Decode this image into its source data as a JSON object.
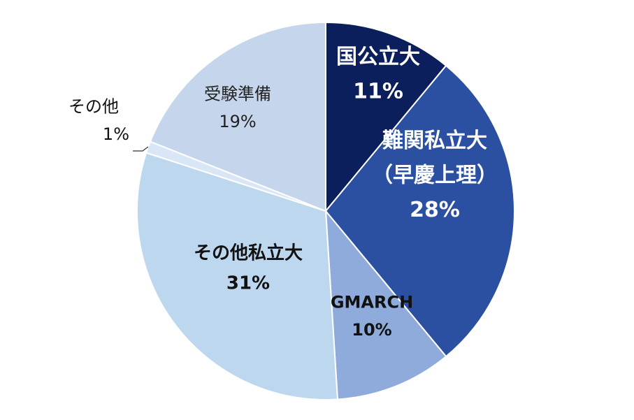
{
  "chart_data": {
    "type": "pie",
    "title": "",
    "start_angle_deg": 0,
    "direction": "clockwise",
    "slices": [
      {
        "label_lines": [
          "国公立大"
        ],
        "value": 11,
        "value_label": "11%",
        "color": "#0b1f5c",
        "text_color": "#ffffff",
        "bold": true
      },
      {
        "label_lines": [
          "難関私立大",
          "（早慶上理）"
        ],
        "value": 28,
        "value_label": "28%",
        "color": "#2b50a2",
        "text_color": "#ffffff",
        "bold": true
      },
      {
        "label_lines": [
          "GMARCH"
        ],
        "value": 10,
        "value_label": "10%",
        "color": "#8fabdc",
        "text_color": "#111111",
        "bold": true
      },
      {
        "label_lines": [
          "その他私立大"
        ],
        "value": 31,
        "value_label": "31%",
        "color": "#bdd7ee",
        "text_color": "#111111",
        "bold": true
      },
      {
        "label_lines": [
          "その他"
        ],
        "value": 1,
        "value_label": "1%",
        "color": "#d9e6f5",
        "text_color": "#111111",
        "bold": false,
        "outside": true
      },
      {
        "label_lines": [
          "受験準備"
        ],
        "value": 19,
        "value_label": "19%",
        "color": "#c5d5eb",
        "text_color": "#222222",
        "bold": false
      }
    ]
  }
}
